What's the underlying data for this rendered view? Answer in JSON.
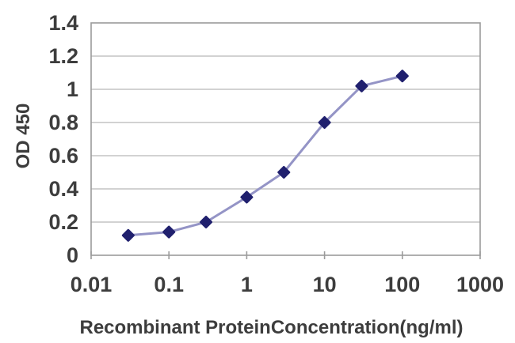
{
  "chart_data": {
    "type": "line",
    "x": [
      0.03,
      0.1,
      0.3,
      1,
      3,
      10,
      30,
      100
    ],
    "y": [
      0.12,
      0.14,
      0.2,
      0.35,
      0.5,
      0.8,
      1.02,
      1.08
    ],
    "xlabel": "Recombinant ProteinConcentration(ng/ml)",
    "ylabel": "OD 450",
    "x_scale": "log",
    "xlim": [
      0.01,
      1000
    ],
    "ylim": [
      0,
      1.4
    ],
    "x_tick_labels": [
      "0.01",
      "0.1",
      "1",
      "10",
      "100",
      "1000"
    ],
    "y_tick_labels": [
      "0",
      "0.2",
      "0.4",
      "0.6",
      "0.8",
      "1",
      "1.2",
      "1.4"
    ],
    "grid": "horizontal-only",
    "legend_position": "none",
    "marker": "diamond",
    "colors": {
      "line": "#9494c6",
      "marker": "#20206e",
      "grid": "#c3c3c3",
      "frame": "#9b9b9b",
      "text": "#3d3d3d"
    }
  }
}
